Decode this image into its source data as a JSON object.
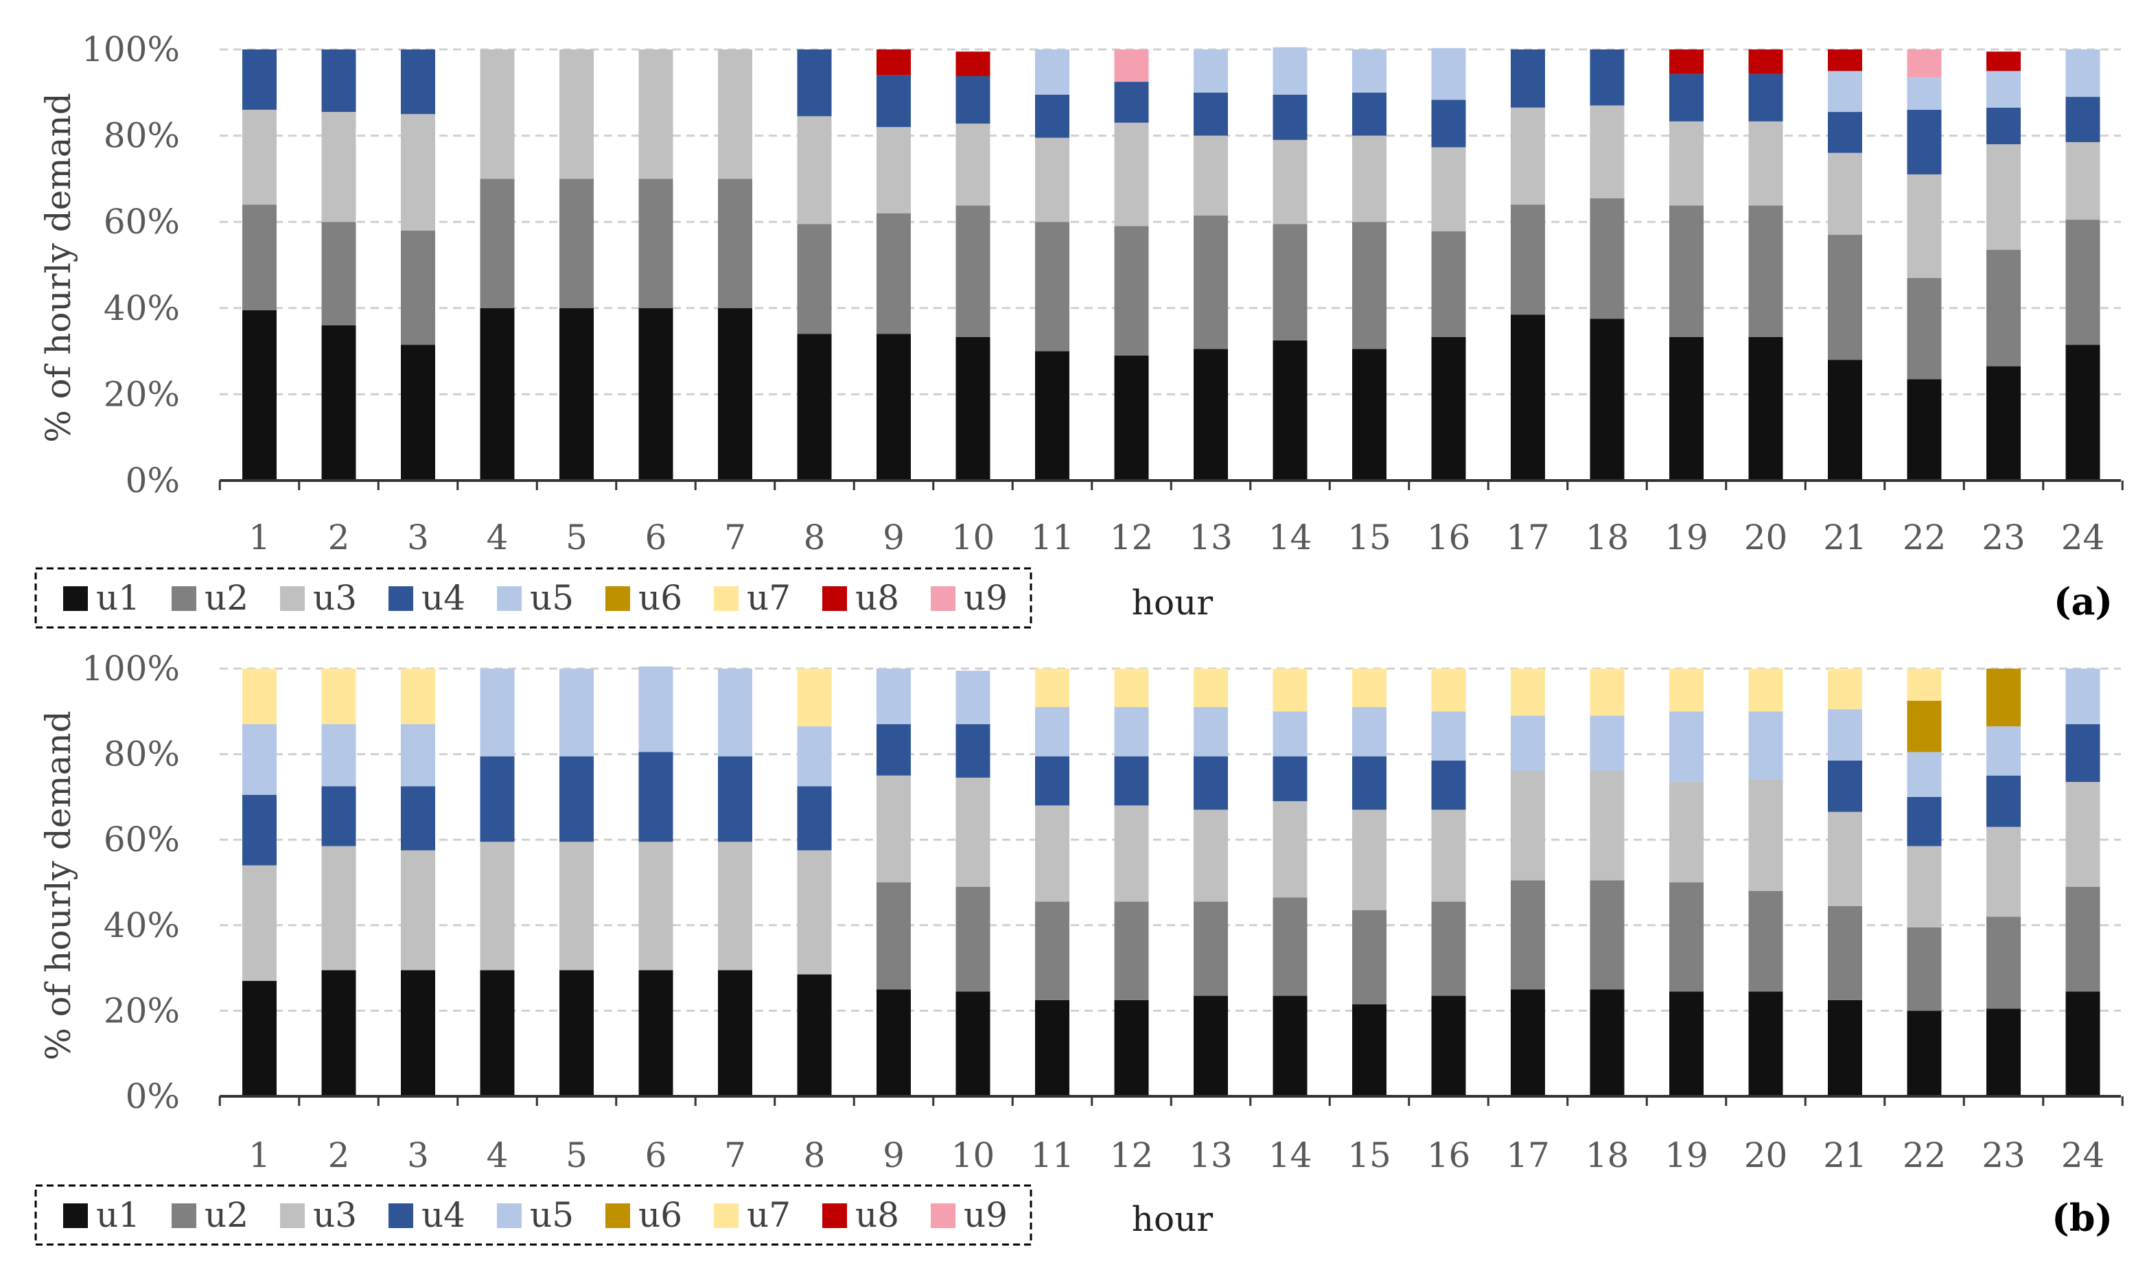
{
  "chart_data": [
    {
      "type": "bar",
      "stacked": true,
      "panel_label": "(a)",
      "xlabel": "hour",
      "ylabel": "% of hourly demand",
      "ylim": [
        0,
        100
      ],
      "yticks": [
        "0%",
        "20%",
        "40%",
        "60%",
        "80%",
        "100%"
      ],
      "categories": [
        "1",
        "2",
        "3",
        "4",
        "5",
        "6",
        "7",
        "8",
        "9",
        "10",
        "11",
        "12",
        "13",
        "14",
        "15",
        "16",
        "17",
        "18",
        "19",
        "20",
        "21",
        "22",
        "23",
        "24"
      ],
      "legend": [
        "u1",
        "u2",
        "u3",
        "u4",
        "u5",
        "u6",
        "u7",
        "u8",
        "u9"
      ],
      "legend_placement": "bottom-left",
      "grid": true,
      "series": [
        {
          "name": "u1",
          "color": "#111111",
          "values": [
            39.5,
            36,
            31.5,
            40,
            40,
            40,
            40,
            34,
            34,
            33.3,
            30,
            29,
            30.5,
            32.5,
            30.5,
            33.3,
            38.5,
            37.5,
            33.3,
            33.3,
            28,
            23.5,
            26.5,
            31.5
          ]
        },
        {
          "name": "u2",
          "color": "#808080",
          "values": [
            24.5,
            24,
            26.5,
            30,
            30,
            30,
            30,
            25.5,
            28,
            30.5,
            30,
            30,
            31,
            27,
            29.5,
            24.5,
            25.5,
            28,
            30.5,
            30.5,
            29,
            23.5,
            27,
            29
          ]
        },
        {
          "name": "u3",
          "color": "#c0c0c0",
          "values": [
            22,
            25.5,
            27,
            30,
            30,
            30,
            30,
            25,
            20,
            19,
            19.5,
            24,
            18.5,
            19.5,
            20,
            19.5,
            22.5,
            21.5,
            19.5,
            19.5,
            19,
            24,
            24.5,
            18
          ]
        },
        {
          "name": "u4",
          "color": "#2f5597",
          "values": [
            14,
            14.5,
            15,
            0,
            0,
            0,
            0,
            15.5,
            12,
            11,
            10,
            9.5,
            10,
            10.5,
            10,
            11,
            13.5,
            13,
            11,
            11,
            9.5,
            15,
            8.5,
            10.5
          ]
        },
        {
          "name": "u5",
          "color": "#b4c7e7",
          "values": [
            0,
            0,
            0,
            0,
            0,
            0,
            0,
            0,
            0,
            0,
            10.5,
            0,
            10,
            11,
            10,
            12,
            0,
            0,
            0,
            0,
            9.5,
            7.5,
            8.5,
            11
          ]
        },
        {
          "name": "u6",
          "color": "#bf9000",
          "values": [
            0,
            0,
            0,
            0,
            0,
            0,
            0,
            0,
            0,
            0,
            0,
            0,
            0,
            0,
            0,
            0,
            0,
            0,
            0,
            0,
            0,
            0,
            0,
            0
          ]
        },
        {
          "name": "u7",
          "color": "#ffe699",
          "values": [
            0,
            0,
            0,
            0,
            0,
            0,
            0,
            0,
            0,
            0,
            0,
            0,
            0,
            0,
            0,
            0,
            0,
            0,
            0,
            0,
            0,
            0,
            0,
            0
          ]
        },
        {
          "name": "u8",
          "color": "#c00000",
          "values": [
            0,
            0,
            0,
            0,
            0,
            0,
            0,
            0,
            6,
            5.7,
            0,
            0,
            0,
            0,
            0,
            0,
            0,
            0,
            5.7,
            5.7,
            5,
            0,
            4.5,
            0
          ]
        },
        {
          "name": "u9",
          "color": "#f4a0b0",
          "values": [
            0,
            0,
            0,
            0,
            0,
            0,
            0,
            0,
            0,
            0,
            0,
            7.5,
            0,
            0,
            0,
            0,
            0,
            0,
            0,
            0,
            0,
            6.5,
            0,
            0
          ]
        }
      ]
    },
    {
      "type": "bar",
      "stacked": true,
      "panel_label": "(b)",
      "xlabel": "hour",
      "ylabel": "% of hourly demand",
      "ylim": [
        0,
        100
      ],
      "yticks": [
        "0%",
        "20%",
        "40%",
        "60%",
        "80%",
        "100%"
      ],
      "categories": [
        "1",
        "2",
        "3",
        "4",
        "5",
        "6",
        "7",
        "8",
        "9",
        "10",
        "11",
        "12",
        "13",
        "14",
        "15",
        "16",
        "17",
        "18",
        "19",
        "20",
        "21",
        "22",
        "23",
        "24"
      ],
      "legend": [
        "u1",
        "u2",
        "u3",
        "u4",
        "u5",
        "u6",
        "u7",
        "u8",
        "u9"
      ],
      "legend_placement": "bottom-left",
      "grid": true,
      "series": [
        {
          "name": "u1",
          "color": "#111111",
          "values": [
            27,
            29.5,
            29.5,
            29.5,
            29.5,
            29.5,
            29.5,
            28.5,
            25,
            24.5,
            22.5,
            22.5,
            23.5,
            23.5,
            21.5,
            23.5,
            25,
            25,
            24.5,
            24.5,
            22.5,
            20,
            20.5,
            24.5
          ]
        },
        {
          "name": "u2",
          "color": "#808080",
          "values": [
            0,
            0,
            0,
            0,
            0,
            0,
            0,
            0,
            25,
            24.5,
            23,
            23,
            22,
            23,
            22,
            22,
            25.5,
            25.5,
            25.5,
            23.5,
            22,
            19.5,
            21.5,
            24.5
          ]
        },
        {
          "name": "u3",
          "color": "#c0c0c0",
          "values": [
            27,
            29,
            28,
            30,
            30,
            30,
            30,
            29,
            25,
            25.5,
            22.5,
            22.5,
            21.5,
            22.5,
            23.5,
            21.5,
            25.5,
            25.5,
            23.5,
            26,
            22,
            19,
            21,
            24.5
          ]
        },
        {
          "name": "u4",
          "color": "#2f5597",
          "values": [
            16.5,
            14,
            15,
            20,
            20,
            21,
            20,
            15,
            12,
            12.5,
            11.5,
            11.5,
            12.5,
            10.5,
            12.5,
            11.5,
            0,
            0,
            0,
            0,
            12,
            11.5,
            12,
            13.5
          ]
        },
        {
          "name": "u5",
          "color": "#b4c7e7",
          "values": [
            16.5,
            14.5,
            14.5,
            20.5,
            20.5,
            20,
            20.5,
            14,
            13,
            12.5,
            11.5,
            11.5,
            11.5,
            10.5,
            11.5,
            11.5,
            13,
            13,
            16.5,
            16,
            12,
            10.5,
            11.5,
            13
          ]
        },
        {
          "name": "u6",
          "color": "#bf9000",
          "values": [
            0,
            0,
            0,
            0,
            0,
            0,
            0,
            0,
            0,
            0,
            0,
            0,
            0,
            0,
            0,
            0,
            0,
            0,
            0,
            0,
            0,
            12,
            13.5,
            0
          ]
        },
        {
          "name": "u7",
          "color": "#ffe699",
          "values": [
            13,
            13,
            13,
            0,
            0,
            0,
            0,
            13.5,
            0,
            0,
            9,
            9,
            9,
            10,
            9,
            10,
            11,
            11,
            10,
            10,
            9.5,
            7.5,
            0,
            0
          ]
        },
        {
          "name": "u8",
          "color": "#c00000",
          "values": [
            0,
            0,
            0,
            0,
            0,
            0,
            0,
            0,
            0,
            0,
            0,
            0,
            0,
            0,
            0,
            0,
            0,
            0,
            0,
            0,
            0,
            0,
            0,
            0
          ]
        },
        {
          "name": "u9",
          "color": "#f4a0b0",
          "values": [
            0,
            0,
            0,
            0,
            0,
            0,
            0,
            0,
            0,
            0,
            0,
            0,
            0,
            0,
            0,
            0,
            0,
            0,
            0,
            0,
            0,
            0,
            0,
            0
          ]
        }
      ]
    }
  ]
}
